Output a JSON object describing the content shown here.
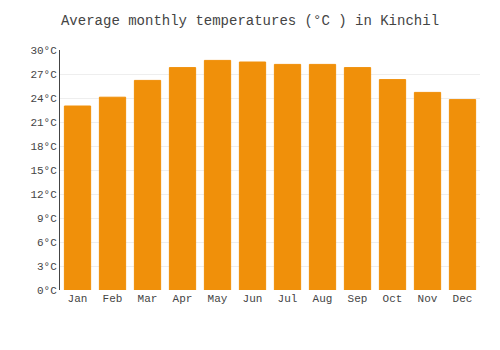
{
  "chart_data": {
    "type": "bar",
    "title": "Average monthly temperatures (°C ) in Kinchil",
    "categories": [
      "Jan",
      "Feb",
      "Mar",
      "Apr",
      "May",
      "Jun",
      "Jul",
      "Aug",
      "Sep",
      "Oct",
      "Nov",
      "Dec"
    ],
    "values": [
      23.0,
      24.1,
      26.2,
      27.8,
      28.7,
      28.5,
      28.2,
      28.2,
      27.8,
      26.3,
      24.7,
      23.8
    ],
    "color": "#F0900A",
    "ylim": [
      0,
      30
    ],
    "yticks": [
      {
        "value": 0,
        "label": "0°C"
      },
      {
        "value": 3,
        "label": "3°C"
      },
      {
        "value": 6,
        "label": "6°C"
      },
      {
        "value": 9,
        "label": "9°C"
      },
      {
        "value": 12,
        "label": "12°C"
      },
      {
        "value": 15,
        "label": "15°C"
      },
      {
        "value": 18,
        "label": "18°C"
      },
      {
        "value": 21,
        "label": "21°C"
      },
      {
        "value": 24,
        "label": "24°C"
      },
      {
        "value": 27,
        "label": "27°C"
      },
      {
        "value": 30,
        "label": "30°C"
      }
    ],
    "grid": true
  }
}
